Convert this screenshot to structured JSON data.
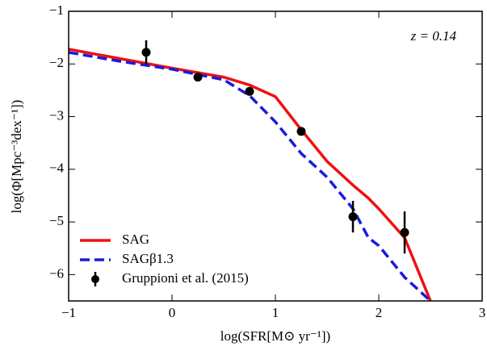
{
  "chart_data": {
    "type": "line",
    "x_label": "log(SFR[M⊙ yr⁻¹])",
    "y_label": "log(Φ[Mpc⁻³dex⁻¹])",
    "annotation": "z = 0.14",
    "x": [
      -1,
      -0.5,
      0,
      0.5,
      0.75,
      1,
      1.25,
      1.5,
      1.75,
      1.9,
      2,
      2.25,
      2.5
    ],
    "series": [
      {
        "name": "SAG",
        "color": "#ee1111",
        "dash": false,
        "values": [
          -1.72,
          -1.9,
          -2.08,
          -2.25,
          -2.4,
          -2.62,
          -3.25,
          -3.85,
          -4.3,
          -4.55,
          -4.75,
          -5.3,
          -6.5
        ]
      },
      {
        "name": "SAGβ1.3",
        "color": "#1a1adc",
        "dash": true,
        "values": [
          -1.78,
          -1.95,
          -2.1,
          -2.3,
          -2.6,
          -3.1,
          -3.7,
          -4.15,
          -4.75,
          -5.3,
          -5.45,
          -6.05,
          -6.5
        ]
      }
    ],
    "points": {
      "name": "Gruppioni et al. (2015)",
      "color": "#000000",
      "x": [
        -0.25,
        0.25,
        0.75,
        1.25,
        1.75,
        2.25
      ],
      "values": [
        -1.78,
        -2.25,
        -2.52,
        -3.28,
        -4.9,
        -5.2
      ],
      "errors": [
        0.23,
        0.05,
        0.06,
        0.05,
        0.3,
        0.4
      ]
    },
    "xlim": [
      -1,
      3
    ],
    "ylim": [
      -6.5,
      -1
    ],
    "xticks": [
      {
        "value": -1,
        "label": "−1"
      },
      0,
      1,
      2,
      3
    ],
    "yticks": [
      {
        "value": -1,
        "label": "−1"
      },
      {
        "value": -2,
        "label": "−2"
      },
      {
        "value": -3,
        "label": "−3"
      },
      {
        "value": -4,
        "label": "−4"
      },
      {
        "value": -5,
        "label": "−5"
      },
      {
        "value": -6,
        "label": "−6"
      }
    ],
    "legend": "lower left"
  }
}
